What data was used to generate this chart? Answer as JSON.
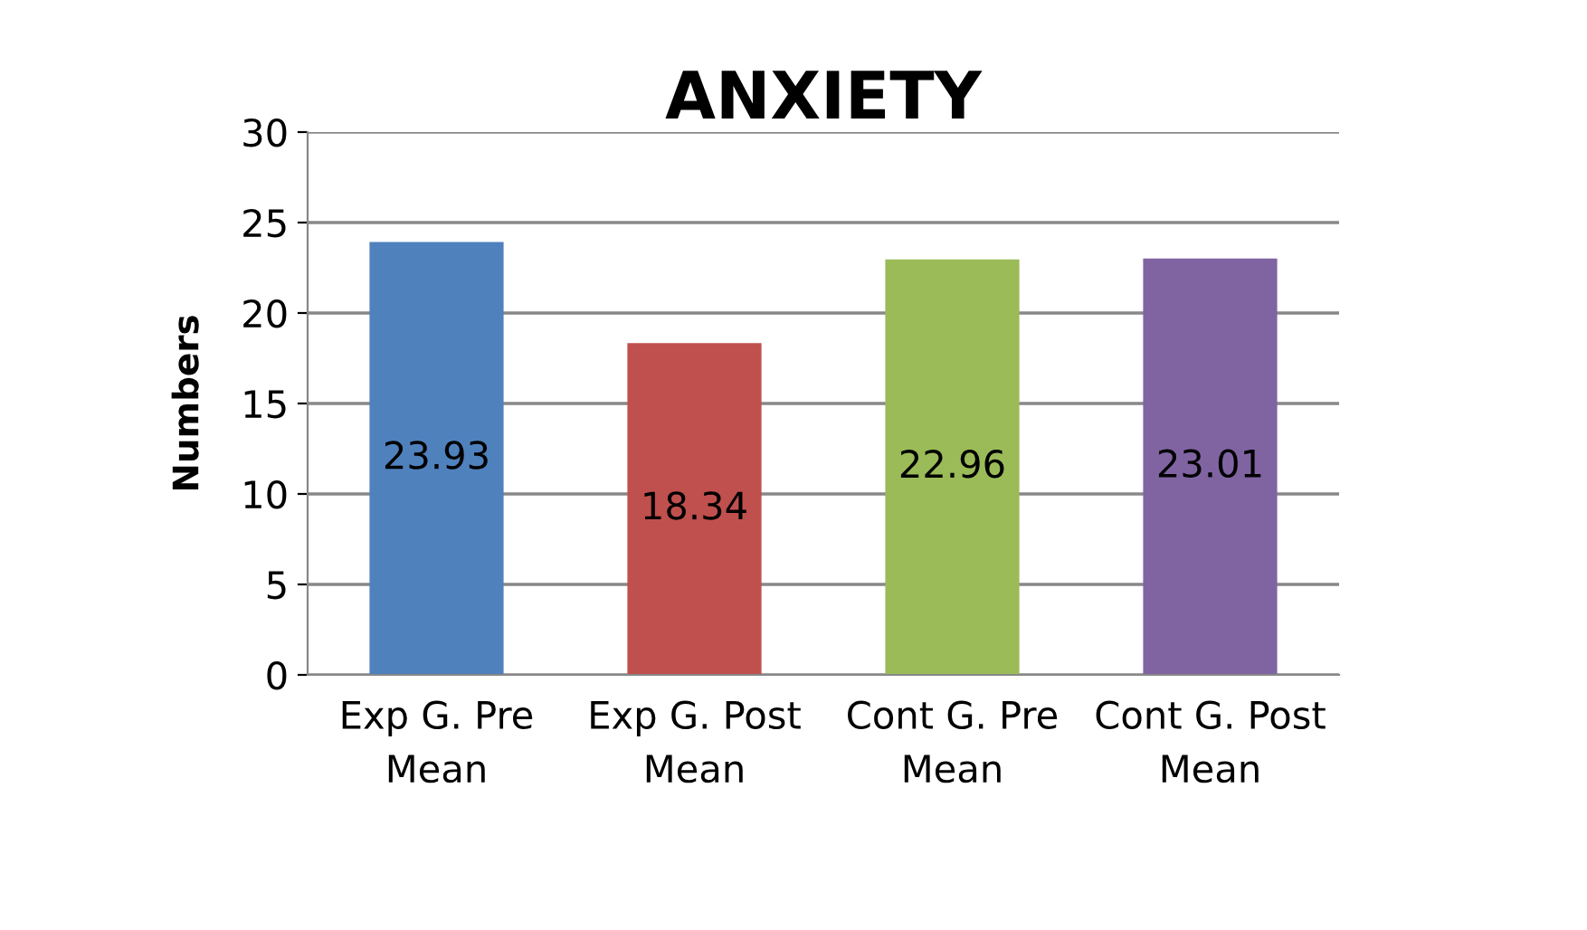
{
  "chart_data": {
    "type": "bar",
    "title": "ANXIETY",
    "ylabel": "Numbers",
    "categories": [
      "Exp G. Pre\nMean",
      "Exp G. Post\nMean",
      "Cont G. Pre\nMean",
      "Cont G. Post\nMean"
    ],
    "values": [
      23.93,
      18.34,
      22.96,
      23.01
    ],
    "colors": [
      "#4f81bd",
      "#c0504d",
      "#9bbb59",
      "#8064a2"
    ],
    "ylim": [
      0,
      30
    ],
    "yticks": [
      0,
      5,
      10,
      15,
      20,
      25,
      30
    ],
    "grid": "y",
    "data_labels": true,
    "legend": false
  }
}
